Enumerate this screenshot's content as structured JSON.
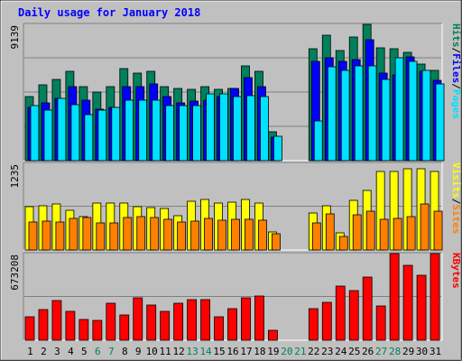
{
  "chart_data": {
    "type": "bar",
    "title": "Daily usage for January 2018",
    "categories": [
      "1",
      "2",
      "3",
      "4",
      "5",
      "6",
      "7",
      "8",
      "9",
      "10",
      "11",
      "12",
      "13",
      "14",
      "15",
      "16",
      "17",
      "18",
      "19",
      "20",
      "21",
      "22",
      "23",
      "24",
      "25",
      "26",
      "27",
      "28",
      "29",
      "30",
      "31"
    ],
    "weekend_categories": [
      "6",
      "7",
      "13",
      "14",
      "20",
      "21",
      "27",
      "28"
    ],
    "panels": [
      {
        "name": "hits-files-pages",
        "y_max_label": "9139",
        "ylim": [
          0,
          9139
        ],
        "legend_text": [
          "Pages",
          "/",
          "Files",
          "/",
          "Hits"
        ],
        "series": [
          {
            "name": "Hits",
            "color": "#00805c",
            "values": [
              4300,
              5100,
              5500,
              6000,
              5000,
              4600,
              5000,
              6200,
              5900,
              6000,
              5000,
              4900,
              4800,
              5000,
              4800,
              4900,
              6400,
              6000,
              2000,
              0,
              0,
              7500,
              8400,
              7400,
              8300,
              9139,
              7600,
              7500,
              7300,
              6500,
              6100
            ]
          },
          {
            "name": "Files",
            "color": "#0000ff",
            "values": [
              3600,
              3900,
              4200,
              5000,
              4100,
              3500,
              3600,
              5000,
              5000,
              5200,
              4300,
              3900,
              4000,
              4100,
              4300,
              4900,
              5600,
              5000,
              1600,
              0,
              0,
              6700,
              6900,
              6700,
              6800,
              8100,
              5900,
              5800,
              7000,
              6000,
              5400
            ]
          },
          {
            "name": "Pages",
            "color": "#00e0ff",
            "values": [
              3700,
              3400,
              4200,
              3800,
              3100,
              3400,
              3600,
              4100,
              4100,
              4100,
              3700,
              3700,
              3700,
              4500,
              4500,
              4300,
              4400,
              4300,
              1700,
              0,
              0,
              2700,
              6300,
              6100,
              6400,
              6400,
              5500,
              6900,
              6700,
              6100,
              5200
            ]
          }
        ]
      },
      {
        "name": "visits-sites",
        "y_max_label": "1235",
        "ylim": [
          0,
          1235
        ],
        "legend_text": [
          "Sites",
          "/",
          "Visits"
        ],
        "series": [
          {
            "name": "Visits",
            "color": "#ffff00",
            "values": [
              620,
              640,
              660,
              570,
              490,
              680,
              680,
              680,
              620,
              610,
              600,
              500,
              700,
              720,
              680,
              690,
              720,
              670,
              270,
              0,
              0,
              540,
              640,
              250,
              710,
              850,
              1120,
              1120,
              1160,
              1160,
              1120
            ]
          },
          {
            "name": "Sites",
            "color": "#ff8000",
            "values": [
              410,
              420,
              410,
              460,
              470,
              400,
              400,
              470,
              490,
              470,
              450,
              410,
              420,
              460,
              430,
              440,
              440,
              430,
              240,
              0,
              0,
              400,
              520,
              210,
              510,
              560,
              450,
              460,
              480,
              660,
              560
            ]
          }
        ]
      },
      {
        "name": "kbytes",
        "y_max_label": "673208",
        "ylim": [
          0,
          673208
        ],
        "legend_text": [
          "KBytes"
        ],
        "series": [
          {
            "name": "KBytes",
            "color": "#ff0000",
            "values": [
              190000,
              240000,
              310000,
              230000,
              170000,
              160000,
              290000,
              200000,
              330000,
              280000,
              230000,
              290000,
              320000,
              320000,
              190000,
              250000,
              330000,
              350000,
              80000,
              0,
              0,
              250000,
              300000,
              420000,
              390000,
              490000,
              270000,
              673208,
              580000,
              510000,
              670000
            ]
          }
        ]
      }
    ],
    "colors": {
      "background": "#c0c0c0",
      "title": "#0000ff",
      "grid": "#808080",
      "weekday_label": "#000000",
      "weekend_label": "#00805c",
      "legend_hits": "#00805c",
      "legend_files": "#0000ff",
      "legend_pages": "#00e0ff",
      "legend_visits": "#ffff00",
      "legend_sites": "#ff8000",
      "legend_kbytes": "#ff0000"
    },
    "grid": true
  }
}
